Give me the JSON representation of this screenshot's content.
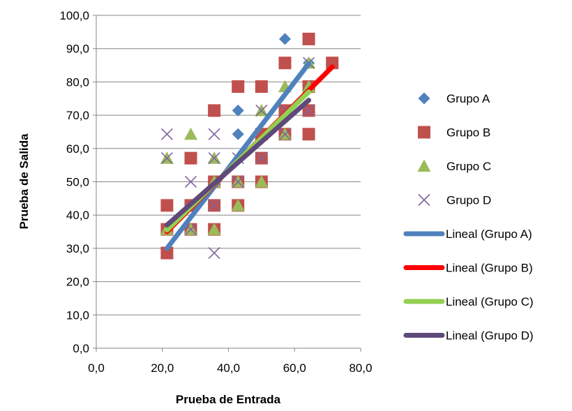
{
  "chart_data": {
    "type": "scatter",
    "xlabel": "Prueba de Entrada",
    "ylabel": "Prueba de Salida",
    "xlim": [
      0,
      80
    ],
    "ylim": [
      0,
      100
    ],
    "x_ticks": [
      0,
      20,
      40,
      60,
      80
    ],
    "y_ticks": [
      0,
      10,
      20,
      30,
      40,
      50,
      60,
      70,
      80,
      90,
      100
    ],
    "x_tick_labels": [
      "0,0",
      "20,0",
      "40,0",
      "60,0",
      "80,0"
    ],
    "y_tick_labels": [
      "0,0",
      "10,0",
      "20,0",
      "30,0",
      "40,0",
      "50,0",
      "60,0",
      "70,0",
      "80,0",
      "90,0",
      "100,0"
    ],
    "grid": "horizontal",
    "legend_position": "right",
    "series": [
      {
        "name": "Grupo A",
        "marker": "diamond",
        "color": "#4F81BD",
        "points": [
          [
            21.4,
            28.6
          ],
          [
            21.4,
            35.7
          ],
          [
            28.6,
            35.7
          ],
          [
            35.7,
            42.9
          ],
          [
            35.7,
            50.0
          ],
          [
            42.9,
            64.3
          ],
          [
            42.9,
            71.4
          ],
          [
            50.0,
            64.3
          ],
          [
            57.1,
            92.9
          ],
          [
            57.1,
            71.4
          ],
          [
            64.3,
            78.6
          ],
          [
            64.3,
            85.7
          ]
        ]
      },
      {
        "name": "Grupo B",
        "marker": "square",
        "color": "#C0504D",
        "points": [
          [
            21.4,
            28.6
          ],
          [
            21.4,
            35.7
          ],
          [
            21.4,
            42.9
          ],
          [
            28.6,
            35.7
          ],
          [
            28.6,
            42.9
          ],
          [
            28.6,
            57.1
          ],
          [
            35.7,
            35.7
          ],
          [
            35.7,
            42.9
          ],
          [
            35.7,
            50.0
          ],
          [
            35.7,
            71.4
          ],
          [
            42.9,
            42.9
          ],
          [
            42.9,
            50.0
          ],
          [
            42.9,
            78.6
          ],
          [
            50.0,
            50.0
          ],
          [
            50.0,
            57.1
          ],
          [
            50.0,
            64.3
          ],
          [
            50.0,
            78.6
          ],
          [
            57.1,
            64.3
          ],
          [
            57.1,
            71.4
          ],
          [
            57.1,
            85.7
          ],
          [
            64.3,
            64.3
          ],
          [
            64.3,
            71.4
          ],
          [
            64.3,
            78.6
          ],
          [
            64.3,
            92.9
          ],
          [
            71.4,
            85.7
          ]
        ]
      },
      {
        "name": "Grupo C",
        "marker": "triangle",
        "color": "#9BBB59",
        "points": [
          [
            21.4,
            35.7
          ],
          [
            21.4,
            57.1
          ],
          [
            28.6,
            35.7
          ],
          [
            28.6,
            64.3
          ],
          [
            35.7,
            35.7
          ],
          [
            35.7,
            50.0
          ],
          [
            35.7,
            57.1
          ],
          [
            42.9,
            42.9
          ],
          [
            42.9,
            50.0
          ],
          [
            50.0,
            50.0
          ],
          [
            50.0,
            71.4
          ],
          [
            57.1,
            64.3
          ],
          [
            57.1,
            78.6
          ],
          [
            64.3,
            78.6
          ],
          [
            64.3,
            85.7
          ]
        ]
      },
      {
        "name": "Grupo D",
        "marker": "x",
        "color": "#8064A2",
        "points": [
          [
            21.4,
            57.1
          ],
          [
            21.4,
            64.3
          ],
          [
            28.6,
            35.7
          ],
          [
            28.6,
            50.0
          ],
          [
            35.7,
            28.6
          ],
          [
            35.7,
            42.9
          ],
          [
            35.7,
            57.1
          ],
          [
            35.7,
            64.3
          ],
          [
            42.9,
            50.0
          ],
          [
            42.9,
            57.1
          ],
          [
            50.0,
            57.1
          ],
          [
            50.0,
            71.4
          ],
          [
            57.1,
            64.3
          ],
          [
            57.1,
            71.4
          ],
          [
            64.3,
            71.4
          ],
          [
            64.3,
            85.7
          ]
        ]
      }
    ],
    "trendlines": [
      {
        "name": "Lineal (Grupo A)",
        "color": "#4F81BD",
        "x": [
          21.4,
          64.3
        ],
        "y": [
          30.0,
          85.5
        ]
      },
      {
        "name": "Lineal (Grupo B)",
        "color": "#FF0000",
        "x": [
          21.4,
          71.4
        ],
        "y": [
          35.0,
          84.5
        ]
      },
      {
        "name": "Lineal (Grupo C)",
        "color": "#92D050",
        "x": [
          21.4,
          64.3
        ],
        "y": [
          35.5,
          77.0
        ]
      },
      {
        "name": "Lineal (Grupo D)",
        "color": "#5F497A",
        "x": [
          21.4,
          64.3
        ],
        "y": [
          37.0,
          74.5
        ]
      }
    ]
  }
}
